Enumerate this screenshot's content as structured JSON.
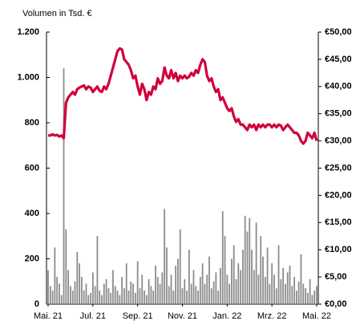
{
  "chart_data": {
    "type": "bar",
    "y_label": "Volumen in Tsd. €",
    "categories": [
      "Mai. 21",
      null,
      null,
      null,
      null,
      null,
      null,
      null,
      null,
      null,
      null,
      null,
      null,
      null,
      null,
      null,
      null,
      null,
      null,
      null,
      "Jul. 21",
      null,
      null,
      null,
      null,
      null,
      null,
      null,
      null,
      null,
      null,
      null,
      null,
      null,
      null,
      null,
      null,
      null,
      null,
      null,
      "Sep. 21",
      null,
      null,
      null,
      null,
      null,
      null,
      null,
      null,
      null,
      null,
      null,
      null,
      null,
      null,
      null,
      null,
      null,
      null,
      null,
      "Nov. 21",
      null,
      null,
      null,
      null,
      null,
      null,
      null,
      null,
      null,
      null,
      null,
      null,
      null,
      null,
      null,
      null,
      null,
      null,
      null,
      "Jan. 22",
      null,
      null,
      null,
      null,
      null,
      null,
      null,
      null,
      null,
      null,
      null,
      null,
      null,
      null,
      null,
      null,
      null,
      null,
      null,
      "Mrz. 22",
      null,
      null,
      null,
      null,
      null,
      null,
      null,
      null,
      null,
      null,
      null,
      null,
      null,
      null,
      null,
      null,
      null,
      null,
      null,
      "Mai. 22"
    ],
    "series": [
      {
        "type": "bar",
        "color": "#8c8c8c",
        "values": [
          150,
          80,
          60,
          250,
          120,
          90,
          40,
          1040,
          330,
          150,
          80,
          60,
          100,
          230,
          180,
          120,
          60,
          90,
          40,
          50,
          140,
          80,
          300,
          60,
          40,
          90,
          110,
          70,
          50,
          150,
          80,
          60,
          40,
          120,
          70,
          180,
          60,
          100,
          90,
          50,
          190,
          70,
          130,
          60,
          40,
          110,
          80,
          60,
          170,
          120,
          90,
          140,
          420,
          250,
          80,
          130,
          60,
          170,
          200,
          330,
          70,
          110,
          60,
          240,
          90,
          150,
          80,
          60,
          120,
          180,
          90,
          130,
          210,
          70,
          100,
          140,
          60,
          160,
          410,
          300,
          130,
          90,
          200,
          260,
          110,
          180,
          150,
          240,
          390,
          320,
          380,
          240,
          150,
          360,
          130,
          300,
          210,
          120,
          250,
          90,
          180,
          130,
          70,
          260,
          110,
          160,
          90,
          140,
          170,
          80,
          120,
          60,
          100,
          220,
          90,
          70,
          50,
          110,
          40,
          60,
          80
        ]
      },
      {
        "type": "line",
        "axis": "y2",
        "color": "#d0003c",
        "values": [
          31,
          31,
          31.2,
          31,
          31.1,
          30.8,
          31,
          30.5,
          37,
          38,
          38.5,
          39,
          38.5,
          39.5,
          39.8,
          40,
          40.2,
          39.5,
          40,
          39.8,
          39,
          39.5,
          40,
          39.2,
          39,
          40,
          39.5,
          40.5,
          42,
          43.5,
          45,
          46.5,
          47,
          46.8,
          45,
          44.5,
          44,
          43,
          41.5,
          42,
          40,
          38.5,
          40.5,
          39.5,
          37.5,
          39,
          38.5,
          40,
          39.5,
          41.5,
          40.5,
          41,
          43.5,
          42,
          41.5,
          43,
          41.5,
          42.5,
          41,
          42,
          41.5,
          42,
          41.5,
          41.8,
          42.5,
          42,
          43,
          42.5,
          44,
          45,
          44.5,
          42,
          41,
          41.5,
          40,
          39,
          39.5,
          37.5,
          38,
          37,
          36,
          35.5,
          36,
          34.5,
          33.5,
          34,
          33,
          33,
          32.5,
          32,
          33,
          32.5,
          33,
          32,
          33,
          32.5,
          33,
          32.5,
          33,
          33,
          32.5,
          33,
          32.5,
          33,
          32.8,
          32,
          32.5,
          33,
          32.5,
          32,
          31.5,
          31.5,
          31,
          30,
          29.5,
          30,
          31.5,
          31,
          30.5,
          31.5,
          30
        ]
      }
    ],
    "ylim": [
      0,
      1200
    ],
    "yticks": [
      0,
      200,
      400,
      600,
      800,
      {
        "value": 1000,
        "label": "1.000"
      },
      {
        "value": 1200,
        "label": "1.200"
      }
    ],
    "y2lim": [
      0,
      50
    ],
    "y2ticks": [
      {
        "value": 0,
        "label": "€0,00"
      },
      {
        "value": 5,
        "label": "€5,00"
      },
      {
        "value": 10,
        "label": "€10,00"
      },
      {
        "value": 15,
        "label": "€15,00"
      },
      {
        "value": 20,
        "label": "€20,00"
      },
      {
        "value": 25,
        "label": "€25,00"
      },
      {
        "value": 30,
        "label": "€30,00"
      },
      {
        "value": 35,
        "label": "€35,00"
      },
      {
        "value": 40,
        "label": "€40,00"
      },
      {
        "value": 45,
        "label": "€45,00"
      },
      {
        "value": 50,
        "label": "€50,00"
      }
    ]
  }
}
